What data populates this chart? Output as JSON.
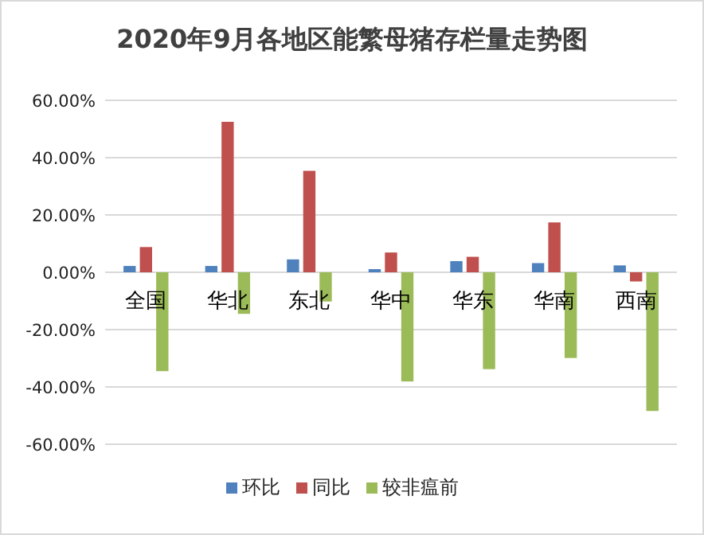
{
  "chart_data": {
    "type": "bar",
    "title": "2020年9月各地区能繁母猪存栏量走势图",
    "categories": [
      "全国",
      "华北",
      "东北",
      "华中",
      "华东",
      "华南",
      "西南"
    ],
    "series": [
      {
        "name": "环比",
        "color": "#4f81bd",
        "values": [
          2.2,
          2.2,
          4.5,
          1.1,
          3.9,
          3.2,
          2.4
        ]
      },
      {
        "name": "同比",
        "color": "#c0504d",
        "values": [
          8.8,
          52.5,
          35.4,
          6.9,
          5.4,
          17.4,
          -3.2
        ]
      },
      {
        "name": "较非瘟前",
        "color": "#9bbb59",
        "values": [
          -34.5,
          -14.5,
          -10.2,
          -38.1,
          -33.8,
          -29.9,
          -48.4
        ]
      }
    ],
    "ylim": [
      -60,
      60
    ],
    "yticks": [
      {
        "value": -60,
        "label": "-60.00%"
      },
      {
        "value": -40,
        "label": "-40.00%"
      },
      {
        "value": -20,
        "label": "-20.00%"
      },
      {
        "value": 0,
        "label": "0.00%"
      },
      {
        "value": 20,
        "label": "20.00%"
      },
      {
        "value": 40,
        "label": "40.00%"
      },
      {
        "value": 60,
        "label": "60.00%"
      }
    ],
    "grid": "y",
    "legend": "bottom"
  }
}
